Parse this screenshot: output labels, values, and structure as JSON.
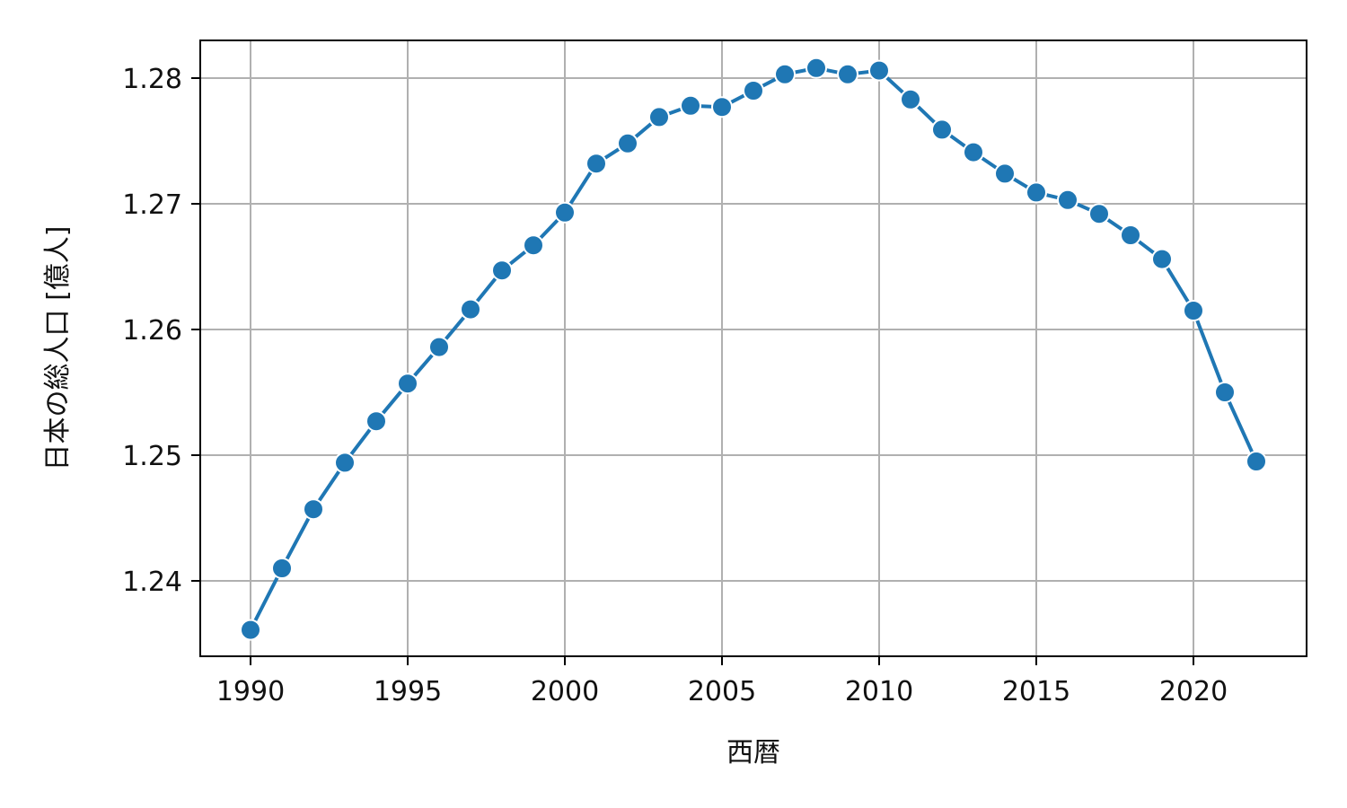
{
  "chart_data": {
    "type": "line",
    "title": "",
    "xlabel": "西暦",
    "ylabel": "日本の総人口 [億人]",
    "xlim": [
      1988.4,
      2023.6
    ],
    "ylim": [
      1.234,
      1.283
    ],
    "xticks": [
      1990,
      1995,
      2000,
      2005,
      2010,
      2015,
      2020
    ],
    "xtick_labels": [
      "1990",
      "1995",
      "2000",
      "2005",
      "2010",
      "2015",
      "2020"
    ],
    "yticks": [
      1.24,
      1.25,
      1.26,
      1.27,
      1.28
    ],
    "ytick_labels": [
      "1.24",
      "1.25",
      "1.26",
      "1.27",
      "1.28"
    ],
    "grid": true,
    "marker": "circle",
    "colors": {
      "line": "#1f77b4",
      "marker_edge": "#ffffff",
      "grid": "#b0b0b0",
      "axes": "#000000"
    },
    "series": [
      {
        "x": [
          1990,
          1991,
          1992,
          1993,
          1994,
          1995,
          1996,
          1997,
          1998,
          1999,
          2000,
          2001,
          2002,
          2003,
          2004,
          2005,
          2006,
          2007,
          2008,
          2009,
          2010,
          2011,
          2012,
          2013,
          2014,
          2015,
          2016,
          2017,
          2018,
          2019,
          2020,
          2021,
          2022
        ],
        "values": [
          1.2361,
          1.241,
          1.2457,
          1.2494,
          1.2527,
          1.2557,
          1.2586,
          1.2616,
          1.2647,
          1.2667,
          1.2693,
          1.2732,
          1.2748,
          1.2769,
          1.2778,
          1.2777,
          1.279,
          1.2803,
          1.2808,
          1.2803,
          1.2806,
          1.2783,
          1.2759,
          1.2741,
          1.2724,
          1.2709,
          1.2703,
          1.2692,
          1.2675,
          1.2656,
          1.2615,
          1.255,
          1.2495
        ]
      }
    ]
  }
}
